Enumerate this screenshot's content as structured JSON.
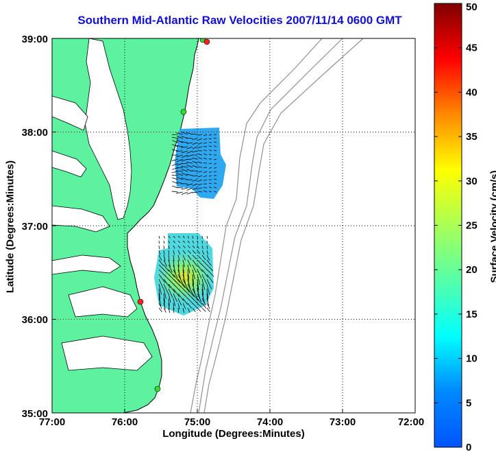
{
  "title": "Southern Mid-Atlantic Raw Velocities 2007/11/14 0600 GMT",
  "xlabel": "Longitude (Degrees:Minutes)",
  "ylabel": "Latitude (Degrees:Minutes)",
  "colorbar_label": "Surface Velocity (cm/s)",
  "map": {
    "lon_range": [
      -77,
      -72
    ],
    "lat_range": [
      35,
      39
    ],
    "x_ticks": [
      "77:00",
      "76:00",
      "75:00",
      "74:00",
      "73:00",
      "72:00"
    ],
    "y_ticks": [
      "39:00",
      "38:00",
      "37:00",
      "36:00",
      "35:00"
    ],
    "grid": "dotted",
    "colors": {
      "land": "#5cf2a0",
      "water": "#ffffff",
      "coastline": "#000000",
      "bathymetry": "#909090",
      "station_active": "#33dd33",
      "station_inactive": "#ff2020"
    }
  },
  "colorbar": {
    "min": 0,
    "max": 50,
    "ticks": [
      "50",
      "45",
      "40",
      "35",
      "30",
      "25",
      "20",
      "15",
      "10",
      "5",
      "0"
    ],
    "colormap": "jet"
  }
}
